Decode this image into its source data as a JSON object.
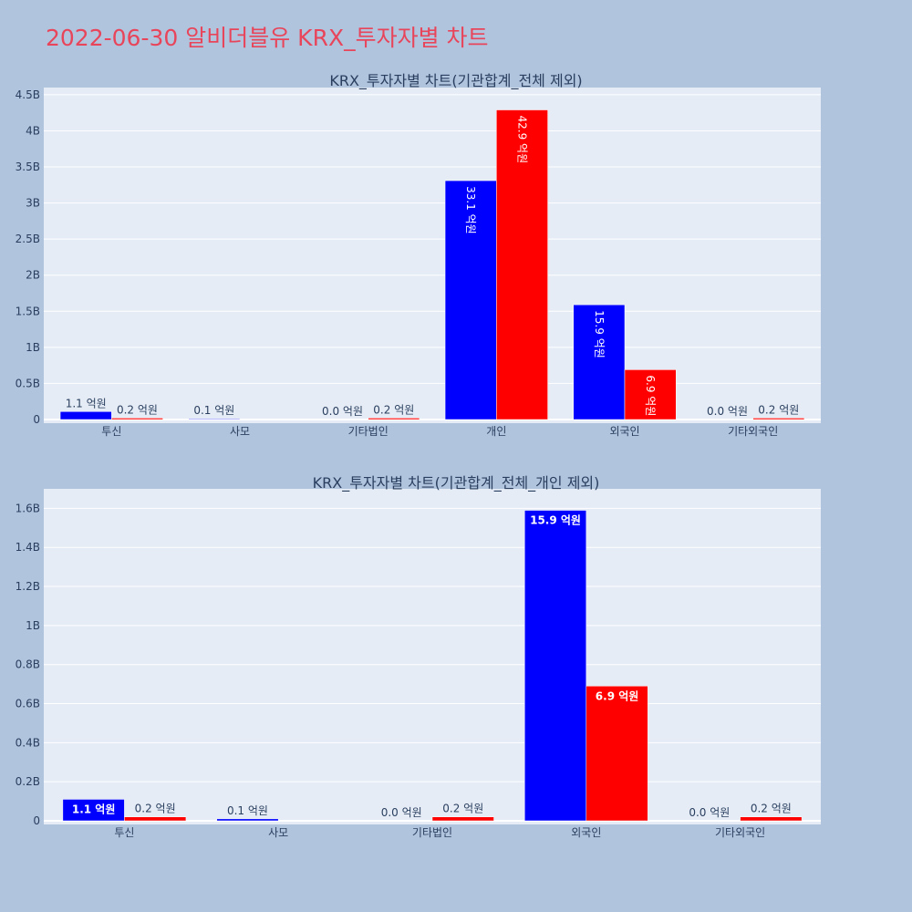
{
  "page_title": "2022-06-30 알비더블유 KRX_투자자별 차트",
  "colors": {
    "background": "#b0c4de",
    "plot_bg": "#e5ecf6",
    "title": "#e8455a",
    "series_a": "#0000ff",
    "series_b": "#ff0000"
  },
  "chart_data": [
    {
      "type": "bar",
      "title": "KRX_투자자별 차트(기관합계_전체 제외)",
      "categories": [
        "투신",
        "사모",
        "기타법인",
        "개인",
        "외국인",
        "기타외국인"
      ],
      "ylim": [
        0,
        4.6
      ],
      "yticks": [
        0,
        0.5,
        1,
        1.5,
        2,
        2.5,
        3,
        3.5,
        4,
        4.5
      ],
      "yticklabels": [
        "0",
        "0.5B",
        "1B",
        "1.5B",
        "2B",
        "2.5B",
        "3B",
        "3.5B",
        "4B",
        "4.5B"
      ],
      "label_orientation": "vertical-inside",
      "series": [
        {
          "color": "#0000ff",
          "values": [
            0.11,
            0.01,
            0.0,
            3.31,
            1.59,
            0.0
          ],
          "labels": [
            "1.1 억원",
            "0.1 억원",
            "0.0 억원",
            "33.1 억원",
            "15.9 억원",
            "0.0 억원"
          ]
        },
        {
          "color": "#ff0000",
          "values": [
            0.02,
            0.0,
            0.02,
            4.29,
            0.69,
            0.02
          ],
          "labels": [
            "0.2 억원",
            "",
            "0.2 억원",
            "42.9 억원",
            "6.9 억원",
            "0.2 억원"
          ]
        }
      ]
    },
    {
      "type": "bar",
      "title": "KRX_투자자별 차트(기관합계_전체_개인 제외)",
      "categories": [
        "투신",
        "사모",
        "기타법인",
        "외국인",
        "기타외국인"
      ],
      "ylim": [
        0,
        1.7
      ],
      "yticks": [
        0,
        0.2,
        0.4,
        0.6,
        0.8,
        1,
        1.2,
        1.4,
        1.6
      ],
      "yticklabels": [
        "0",
        "0.2B",
        "0.4B",
        "0.6B",
        "0.8B",
        "1B",
        "1.2B",
        "1.4B",
        "1.6B"
      ],
      "label_orientation": "horizontal",
      "series": [
        {
          "color": "#0000ff",
          "values": [
            0.11,
            0.01,
            0.0,
            1.59,
            0.0
          ],
          "labels": [
            "1.1 억원",
            "0.1 억원",
            "0.0 억원",
            "15.9 억원",
            "0.0 억원"
          ]
        },
        {
          "color": "#ff0000",
          "values": [
            0.02,
            0.0,
            0.02,
            0.69,
            0.02
          ],
          "labels": [
            "0.2 억원",
            "",
            "0.2 억원",
            "6.9 억원",
            "0.2 억원"
          ]
        }
      ]
    }
  ]
}
